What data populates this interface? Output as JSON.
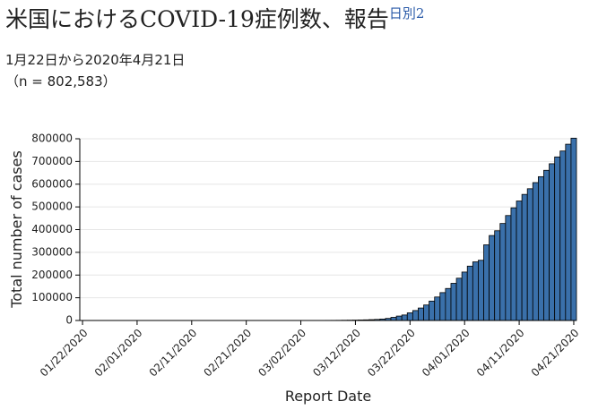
{
  "chart_data": {
    "type": "bar",
    "title": "米国におけるCOVID-19症例数、報告",
    "title_superscript": "日別2",
    "subtitle": "1月22日から2020年4月21日",
    "note": "（n = 802,583）",
    "x_label": "Report Date",
    "y_label": "Total number of cases",
    "categories": [
      "01/22/2020",
      null,
      null,
      null,
      null,
      null,
      null,
      null,
      null,
      null,
      "02/01/2020",
      null,
      null,
      null,
      null,
      null,
      null,
      null,
      null,
      null,
      "02/11/2020",
      null,
      null,
      null,
      null,
      null,
      null,
      null,
      null,
      null,
      "02/21/2020",
      null,
      null,
      null,
      null,
      null,
      null,
      null,
      null,
      null,
      "03/02/2020",
      null,
      null,
      null,
      null,
      null,
      null,
      null,
      null,
      null,
      "03/12/2020",
      null,
      null,
      null,
      null,
      null,
      null,
      null,
      null,
      null,
      "03/22/2020",
      null,
      null,
      null,
      null,
      null,
      null,
      null,
      null,
      null,
      "04/01/2020",
      null,
      null,
      null,
      null,
      null,
      null,
      null,
      null,
      null,
      "04/11/2020",
      null,
      null,
      null,
      null,
      null,
      null,
      null,
      null,
      null,
      "04/21/2020"
    ],
    "values": [
      1,
      1,
      1,
      2,
      5,
      5,
      5,
      5,
      6,
      7,
      8,
      11,
      11,
      11,
      12,
      12,
      12,
      12,
      12,
      13,
      13,
      14,
      14,
      14,
      14,
      14,
      14,
      14,
      14,
      15,
      15,
      15,
      35,
      35,
      35,
      53,
      57,
      60,
      62,
      75,
      100,
      124,
      158,
      221,
      319,
      435,
      541,
      704,
      994,
      1301,
      1630,
      2183,
      2770,
      3613,
      4596,
      6344,
      9197,
      13779,
      19367,
      24192,
      33592,
      43781,
      54856,
      68211,
      85356,
      103321,
      122653,
      140904,
      163539,
      186101,
      213144,
      239279,
      258000,
      265000,
      333000,
      374000,
      395000,
      427000,
      462000,
      496000,
      526000,
      555000,
      580000,
      607000,
      633000,
      661000,
      690000,
      720000,
      746000,
      776000,
      802583
    ],
    "color": "#3a70aa",
    "ylim": [
      0,
      800000
    ],
    "yticks": [
      0,
      100000,
      200000,
      300000,
      400000,
      500000,
      600000,
      700000,
      800000
    ],
    "grid": true
  }
}
